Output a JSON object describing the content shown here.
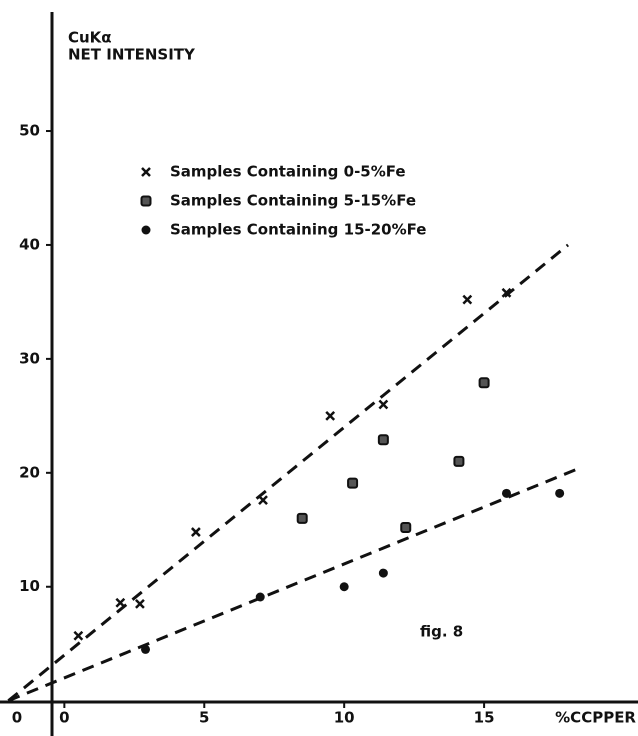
{
  "chart_data": {
    "type": "scatter",
    "y_label_lines": [
      "CuKα",
      "NET INTENSITY"
    ],
    "x_label": "%CCPPER",
    "origin_label": "0",
    "annotation": "fig. 8",
    "xlim": [
      -2.3,
      20.5
    ],
    "ylim": [
      -3.1,
      61.5
    ],
    "xticks": [
      0,
      5,
      10,
      15
    ],
    "yticks": [
      10,
      20,
      30,
      40,
      50
    ],
    "series": [
      {
        "name": "Samples Containing 0-5%Fe",
        "marker": "x",
        "color": "#111",
        "x": [
          0.5,
          2.0,
          2.7,
          4.7,
          7.1,
          9.5,
          11.4,
          14.4,
          15.8
        ],
        "values": [
          5.7,
          8.6,
          8.5,
          14.8,
          17.6,
          25.0,
          26.0,
          35.2,
          35.8
        ]
      },
      {
        "name": "Samples Containing 5-15%Fe",
        "marker": "square",
        "color": "#111",
        "x": [
          8.5,
          10.3,
          11.4,
          12.2,
          14.1,
          15.0
        ],
        "values": [
          16.0,
          19.1,
          22.9,
          15.2,
          21.0,
          27.9
        ]
      },
      {
        "name": "Samples Containing 15-20%Fe",
        "marker": "dot",
        "color": "#111",
        "x": [
          2.9,
          7.0,
          10.0,
          11.4,
          15.8,
          17.7
        ],
        "values": [
          4.5,
          9.1,
          10.0,
          11.2,
          18.2,
          18.2
        ]
      }
    ],
    "trend_lines": [
      {
        "x": [
          -2,
          18
        ],
        "values": [
          0,
          40
        ]
      },
      {
        "x": [
          -2,
          18.3
        ],
        "values": [
          0,
          20.3
        ]
      }
    ]
  }
}
